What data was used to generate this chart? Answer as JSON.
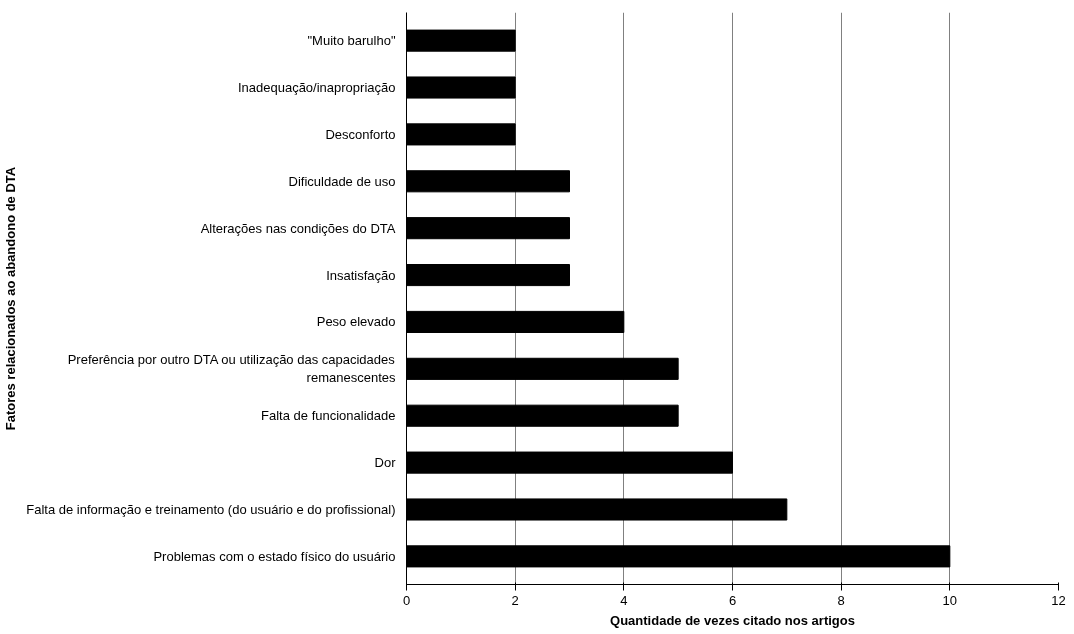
{
  "chart_data": {
    "type": "bar",
    "orientation": "horizontal",
    "xlabel": "Quantidade de vezes citado nos artigos",
    "ylabel": "Fatores relacionados ao abandono de DTA",
    "categories": [
      "\"Muito barulho\"",
      "Inadequação/inapropriação",
      "Desconforto",
      "Dificuldade de uso",
      "Alterações nas condições do DTA",
      "Insatisfação",
      "Peso elevado",
      "Preferência por outro DTA ou utilização das capacidades\nremanescentes",
      "Falta de funcionalidade",
      "Dor",
      "Falta de informação e treinamento (do usuário e do profissional)",
      "Problemas com o estado físico do usuário"
    ],
    "values": [
      2,
      2,
      2,
      3,
      3,
      3,
      4,
      5,
      5,
      6,
      7,
      10
    ],
    "color": "#000000",
    "xlim": [
      0,
      12
    ],
    "xticks": [
      0,
      2,
      4,
      6,
      8,
      10,
      12
    ],
    "grid": "x"
  }
}
